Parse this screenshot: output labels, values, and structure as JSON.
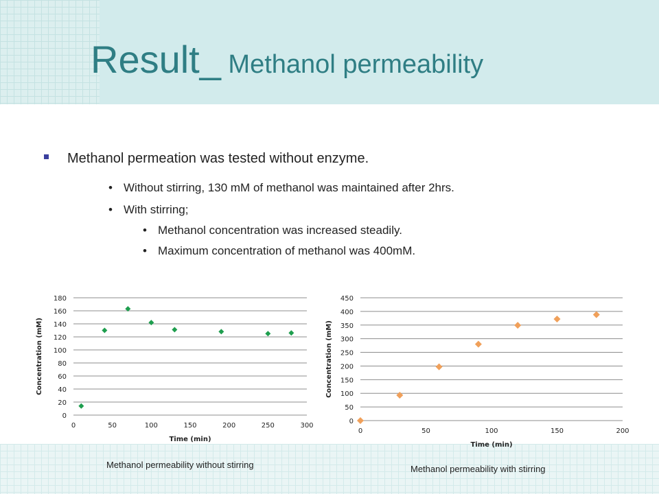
{
  "slide": {
    "title_main": "Result_",
    "title_sub": " Methanol permeability",
    "bullet_main": "Methanol permeation was tested without enzyme.",
    "bullets": [
      "Without stirring, 130 mM of methanol was maintained after 2hrs.",
      "With stirring;"
    ],
    "sub_bullets": [
      "Methanol concentration was  increased steadily.",
      "Maximum concentration of methanol was 400mM."
    ],
    "bullet_glyph": "•",
    "colors": {
      "title": "#2f7e84",
      "series1": "#1e9e4e",
      "series2": "#f0a05a"
    }
  },
  "chart_data": [
    {
      "type": "scatter",
      "title": "",
      "caption": "Methanol permeability without stirring",
      "xlabel": "Time (min)",
      "ylabel": "Concentration  (mM)",
      "xlim": [
        0,
        300
      ],
      "ylim": [
        0,
        180
      ],
      "xticks": [
        0,
        50,
        100,
        150,
        200,
        250,
        300
      ],
      "yticks": [
        0,
        20,
        40,
        60,
        80,
        100,
        120,
        140,
        160,
        180
      ],
      "grid": true,
      "marker": "diamond",
      "color": "#1e9e4e",
      "x": [
        10,
        40,
        70,
        100,
        130,
        190,
        250,
        280
      ],
      "y": [
        14,
        130,
        163,
        142,
        131,
        128,
        125,
        126
      ]
    },
    {
      "type": "scatter",
      "title": "",
      "caption": "Methanol permeability with stirring",
      "xlabel": "Time (min)",
      "ylabel": "Concentration (mM)",
      "xlim": [
        0,
        200
      ],
      "ylim": [
        0,
        450
      ],
      "xticks": [
        0,
        50,
        100,
        150,
        200
      ],
      "yticks": [
        0,
        50,
        100,
        150,
        200,
        250,
        300,
        350,
        400,
        450
      ],
      "grid": true,
      "marker": "diamond",
      "color": "#f0a05a",
      "x": [
        0,
        30,
        60,
        90,
        120,
        150,
        180
      ],
      "y": [
        0,
        93,
        197,
        280,
        349,
        372,
        388
      ]
    }
  ]
}
